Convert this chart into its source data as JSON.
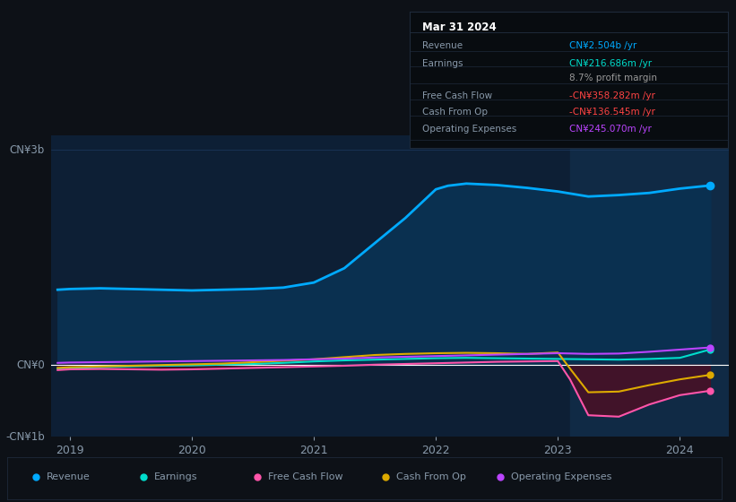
{
  "bg_color": "#0d1117",
  "plot_bg": "#0d1f35",
  "highlight_bg": "#102a45",
  "zero_line_color": "#ffffff",
  "grid_color": "#1e3a5f",
  "text_color": "#8899aa",
  "y_label_3b": "CN¥3b",
  "y_label_0": "CN¥0",
  "y_label_neg1b": "-CN¥1b",
  "x_ticks": [
    2019,
    2020,
    2021,
    2022,
    2023,
    2024
  ],
  "highlight_x_start": 2023.1,
  "tooltip_title": "Mar 31 2024",
  "tooltip_rows": [
    {
      "label": "Revenue",
      "value": "CN¥2.504b /yr",
      "value_color": "#00aaff"
    },
    {
      "label": "Earnings",
      "value": "CN¥216.686m /yr",
      "value_color": "#00ddcc"
    },
    {
      "label": "",
      "value": "8.7% profit margin",
      "value_color": "#999999"
    },
    {
      "label": "Free Cash Flow",
      "value": "-CN¥358.282m /yr",
      "value_color": "#ff4444"
    },
    {
      "label": "Cash From Op",
      "value": "-CN¥136.545m /yr",
      "value_color": "#ff4444"
    },
    {
      "label": "Operating Expenses",
      "value": "CN¥245.070m /yr",
      "value_color": "#bb44ff"
    }
  ],
  "legend": [
    {
      "label": "Revenue",
      "color": "#00aaff"
    },
    {
      "label": "Earnings",
      "color": "#00ddcc"
    },
    {
      "label": "Free Cash Flow",
      "color": "#ff55aa"
    },
    {
      "label": "Cash From Op",
      "color": "#ddaa00"
    },
    {
      "label": "Operating Expenses",
      "color": "#bb44ff"
    }
  ],
  "revenue_color": "#00aaff",
  "earnings_color": "#00ddcc",
  "fcf_color": "#ff55aa",
  "cashfromop_color": "#ddaa00",
  "opex_color": "#bb44ff",
  "revenue_fill": "#0a3050",
  "fcf_fill": "#4a1025",
  "revenue": {
    "x": [
      2018.9,
      2019.0,
      2019.25,
      2019.5,
      2019.75,
      2020.0,
      2020.25,
      2020.5,
      2020.75,
      2021.0,
      2021.25,
      2021.5,
      2021.75,
      2022.0,
      2022.1,
      2022.25,
      2022.5,
      2022.75,
      2023.0,
      2023.25,
      2023.5,
      2023.75,
      2024.0,
      2024.25
    ],
    "y": [
      1050,
      1060,
      1070,
      1060,
      1050,
      1040,
      1050,
      1060,
      1080,
      1150,
      1350,
      1700,
      2050,
      2450,
      2500,
      2530,
      2510,
      2470,
      2420,
      2350,
      2370,
      2400,
      2460,
      2504
    ]
  },
  "earnings": {
    "x": [
      2018.9,
      2019.0,
      2019.25,
      2019.5,
      2019.75,
      2020.0,
      2020.25,
      2020.5,
      2020.75,
      2021.0,
      2021.25,
      2021.5,
      2021.75,
      2022.0,
      2022.25,
      2022.5,
      2022.75,
      2023.0,
      2023.25,
      2023.5,
      2023.75,
      2024.0,
      2024.25
    ],
    "y": [
      -50,
      -40,
      -30,
      -20,
      -10,
      -5,
      5,
      15,
      30,
      50,
      65,
      75,
      85,
      95,
      100,
      95,
      90,
      85,
      80,
      75,
      85,
      100,
      217
    ]
  },
  "fcf": {
    "x": [
      2018.9,
      2019.0,
      2019.25,
      2019.5,
      2019.75,
      2020.0,
      2020.25,
      2020.5,
      2020.75,
      2021.0,
      2021.25,
      2021.5,
      2021.75,
      2022.0,
      2022.25,
      2022.5,
      2022.75,
      2023.0,
      2023.1,
      2023.25,
      2023.5,
      2023.75,
      2024.0,
      2024.25
    ],
    "y": [
      -70,
      -60,
      -55,
      -60,
      -65,
      -60,
      -50,
      -40,
      -30,
      -20,
      -10,
      5,
      15,
      25,
      35,
      45,
      50,
      55,
      -200,
      -700,
      -720,
      -550,
      -420,
      -358
    ]
  },
  "cashfromop": {
    "x": [
      2018.9,
      2019.0,
      2019.25,
      2019.5,
      2019.75,
      2020.0,
      2020.25,
      2020.5,
      2020.75,
      2021.0,
      2021.25,
      2021.5,
      2021.75,
      2022.0,
      2022.25,
      2022.5,
      2022.75,
      2023.0,
      2023.1,
      2023.25,
      2023.5,
      2023.75,
      2024.0,
      2024.25
    ],
    "y": [
      -40,
      -30,
      -20,
      -10,
      0,
      10,
      20,
      40,
      60,
      80,
      110,
      140,
      155,
      165,
      170,
      165,
      155,
      175,
      -50,
      -380,
      -370,
      -280,
      -200,
      -137
    ]
  },
  "opex": {
    "x": [
      2018.9,
      2019.0,
      2019.25,
      2019.5,
      2019.75,
      2020.0,
      2020.25,
      2020.5,
      2020.75,
      2021.0,
      2021.25,
      2021.5,
      2021.75,
      2022.0,
      2022.25,
      2022.5,
      2022.75,
      2023.0,
      2023.25,
      2023.5,
      2023.75,
      2024.0,
      2024.25
    ],
    "y": [
      30,
      35,
      40,
      45,
      50,
      55,
      60,
      65,
      70,
      80,
      90,
      105,
      115,
      125,
      135,
      145,
      155,
      165,
      155,
      160,
      185,
      215,
      245
    ]
  },
  "ylim": [
    -1000,
    3200
  ],
  "xlim": [
    2018.85,
    2024.4
  ]
}
